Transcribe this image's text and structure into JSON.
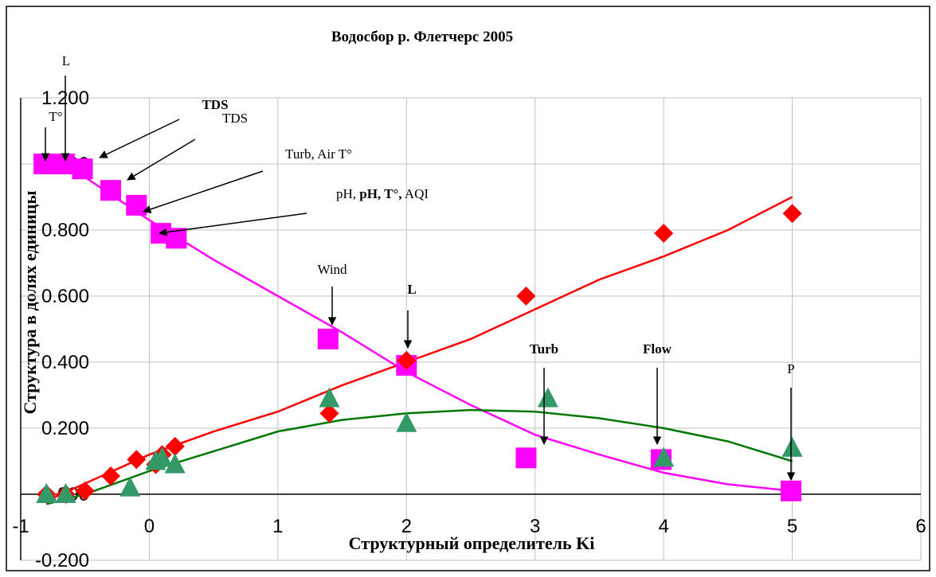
{
  "chart_data": {
    "type": "scatter",
    "title": "Водосбор р. Флетчерс 2005",
    "xlabel": "Структурный определитель Ki",
    "ylabel": "Структура в долях единицы",
    "xlim": [
      -1,
      6
    ],
    "xticks": [
      -1,
      0,
      1,
      2,
      3,
      4,
      5,
      6
    ],
    "ylim": [
      -0.2,
      1.2
    ],
    "yticks": [
      {
        "value": -0.2,
        "label": "-0.200"
      },
      {
        "value": 0,
        "label": "0.000"
      },
      {
        "value": 0.2,
        "label": "0.200"
      },
      {
        "value": 0.4,
        "label": "0.400"
      },
      {
        "value": 0.6,
        "label": "0.600"
      },
      {
        "value": 0.8,
        "label": "0.800"
      },
      {
        "value": 1.0,
        "label": "1.000"
      },
      {
        "value": 1.2,
        "label": "1.200"
      }
    ],
    "grid": true,
    "series": [
      {
        "marker": "square",
        "color": "#ff00ff",
        "x": [
          -0.82,
          -0.66,
          -0.52,
          -0.3,
          -0.1,
          0.09,
          0.21,
          1.39,
          2.0,
          2.93,
          3.98,
          4.99
        ],
        "values": [
          1.0,
          1.0,
          0.985,
          0.92,
          0.875,
          0.79,
          0.775,
          0.47,
          0.39,
          0.11,
          0.105,
          0.01
        ],
        "trend_x": [
          -0.8,
          -0.5,
          0,
          0.5,
          1,
          1.5,
          2,
          2.5,
          3,
          3.5,
          4,
          4.5,
          5
        ],
        "trend_values": [
          1.0,
          0.96,
          0.83,
          0.71,
          0.6,
          0.49,
          0.37,
          0.27,
          0.18,
          0.12,
          0.065,
          0.03,
          0.01
        ]
      },
      {
        "marker": "diamond",
        "color": "#ff0000",
        "x": [
          -0.8,
          -0.65,
          -0.5,
          -0.3,
          -0.1,
          0.05,
          0.1,
          0.2,
          1.4,
          2.0,
          2.93,
          4.0,
          5.0
        ],
        "values": [
          0.0,
          0.0,
          0.01,
          0.055,
          0.105,
          0.09,
          0.12,
          0.145,
          0.245,
          0.405,
          0.6,
          0.79,
          0.85
        ],
        "trend_x": [
          -0.8,
          0,
          0.5,
          1,
          1.5,
          2,
          2.5,
          3,
          3.5,
          4,
          4.5,
          5
        ],
        "trend_values": [
          -0.02,
          0.12,
          0.19,
          0.25,
          0.33,
          0.4,
          0.47,
          0.56,
          0.65,
          0.72,
          0.8,
          0.9
        ]
      },
      {
        "marker": "triangle",
        "color": "#339966",
        "x": [
          -0.8,
          -0.65,
          -0.15,
          0.05,
          0.1,
          0.2,
          1.4,
          2.0,
          3.1,
          4.0,
          5.0
        ],
        "values": [
          0.0,
          0.0,
          0.02,
          0.1,
          0.11,
          0.09,
          0.29,
          0.215,
          0.29,
          0.11,
          0.14
        ],
        "trend_x": [
          -0.8,
          -0.5,
          0,
          0.5,
          1,
          1.5,
          2,
          2.5,
          3,
          3.5,
          4,
          4.5,
          5
        ],
        "trend_values": [
          -0.03,
          0.0,
          0.07,
          0.13,
          0.19,
          0.225,
          0.245,
          0.255,
          0.25,
          0.23,
          0.2,
          0.16,
          0.1
        ],
        "trend_color": "#007700"
      }
    ],
    "annotations": [
      {
        "parts": [
          {
            "text": "T°"
          }
        ]
      },
      {
        "parts": [
          {
            "text": "L"
          }
        ]
      },
      {
        "parts": [
          {
            "text": "TDS",
            "bold": true
          }
        ]
      },
      {
        "parts": [
          {
            "text": "TDS"
          }
        ]
      },
      {
        "parts": [
          {
            "text": "Turb, Air T°"
          }
        ]
      },
      {
        "parts": [
          {
            "text": "pH, "
          },
          {
            "text": "pH, T°,",
            "bold": true
          },
          {
            "text": " AQI"
          }
        ]
      },
      {
        "parts": [
          {
            "text": "Wind"
          }
        ]
      },
      {
        "parts": [
          {
            "text": "L",
            "bold": true
          }
        ]
      },
      {
        "parts": [
          {
            "text": "Turb",
            "bold": true
          }
        ]
      },
      {
        "parts": [
          {
            "text": "Flow",
            "bold": true
          }
        ]
      },
      {
        "parts": [
          {
            "text": "P"
          }
        ]
      }
    ]
  }
}
